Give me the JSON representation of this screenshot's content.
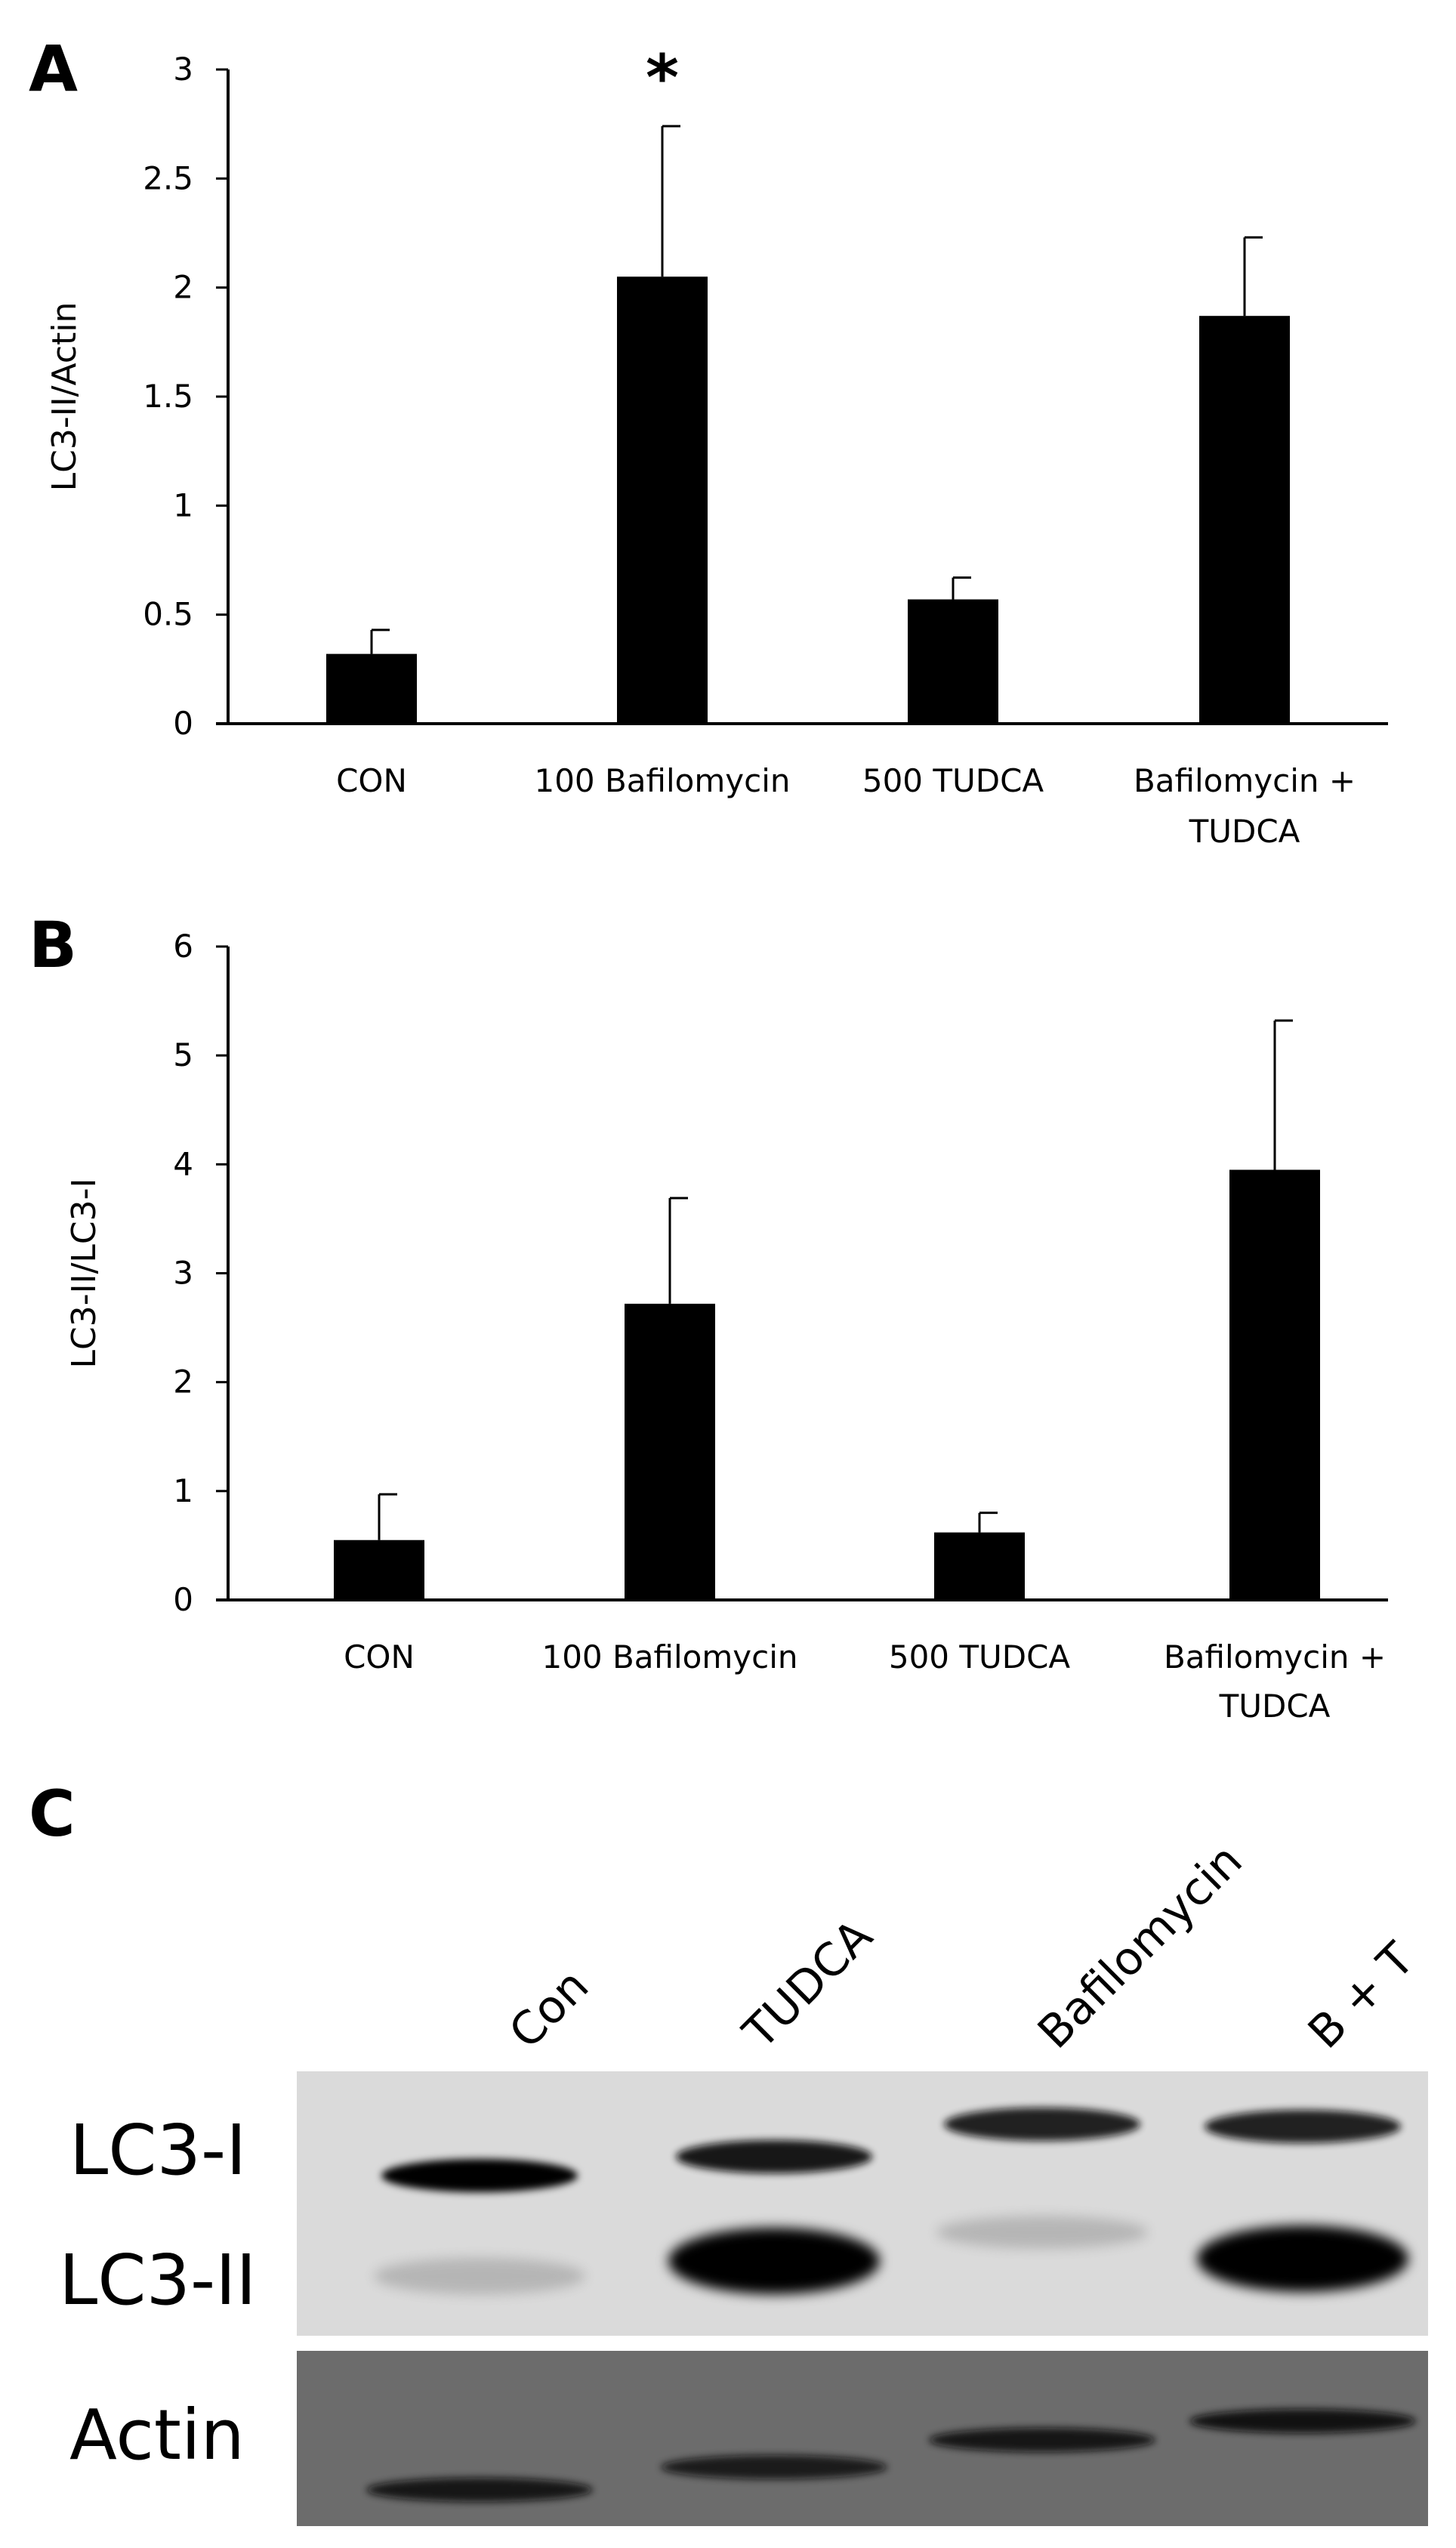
{
  "chart_data": [
    {
      "panel": "A",
      "type": "bar",
      "categories": [
        [
          "CON"
        ],
        [
          "100 Bafilomycin"
        ],
        [
          "500 TUDCA"
        ],
        [
          "Bafilomycin +",
          "TUDCA"
        ]
      ],
      "values": [
        0.32,
        2.05,
        0.57,
        1.87
      ],
      "errors": [
        0.11,
        0.69,
        0.1,
        0.36
      ],
      "annotations": [
        "",
        "*",
        "",
        ""
      ],
      "ylabel": "LC3-II/Actin",
      "ylim": [
        0,
        3
      ],
      "yticks": [
        "0",
        "0.5",
        "1",
        "1.5",
        "2",
        "2.5",
        "3"
      ],
      "ytick_values": [
        0,
        0.5,
        1,
        1.5,
        2,
        2.5,
        3
      ]
    },
    {
      "panel": "B",
      "type": "bar",
      "categories": [
        [
          "CON"
        ],
        [
          "100 Bafilomycin"
        ],
        [
          "500 TUDCA"
        ],
        [
          "Bafilomycin +",
          "TUDCA"
        ]
      ],
      "values": [
        0.55,
        2.72,
        0.62,
        3.95
      ],
      "errors": [
        0.42,
        0.97,
        0.18,
        1.37
      ],
      "annotations": [
        "",
        "",
        "",
        ""
      ],
      "ylabel": "LC3-II/LC3-I",
      "ylim": [
        0,
        6
      ],
      "yticks": [
        "0",
        "1",
        "2",
        "3",
        "4",
        "5",
        "6"
      ],
      "ytick_values": [
        0,
        1,
        2,
        3,
        4,
        5,
        6
      ]
    }
  ],
  "blot": {
    "panel": "C",
    "lanes": [
      "Con",
      "TUDCA",
      "Bafilomycin",
      "B + T"
    ],
    "rows": [
      "LC3-I",
      "LC3-II",
      "Actin"
    ],
    "lc3i_intensity": [
      0.9,
      0.85,
      0.8,
      0.8
    ],
    "lc3ii_intensity": [
      0.3,
      1.0,
      0.2,
      1.0
    ],
    "actin_intensity": [
      0.9,
      0.85,
      0.9,
      0.95
    ]
  }
}
